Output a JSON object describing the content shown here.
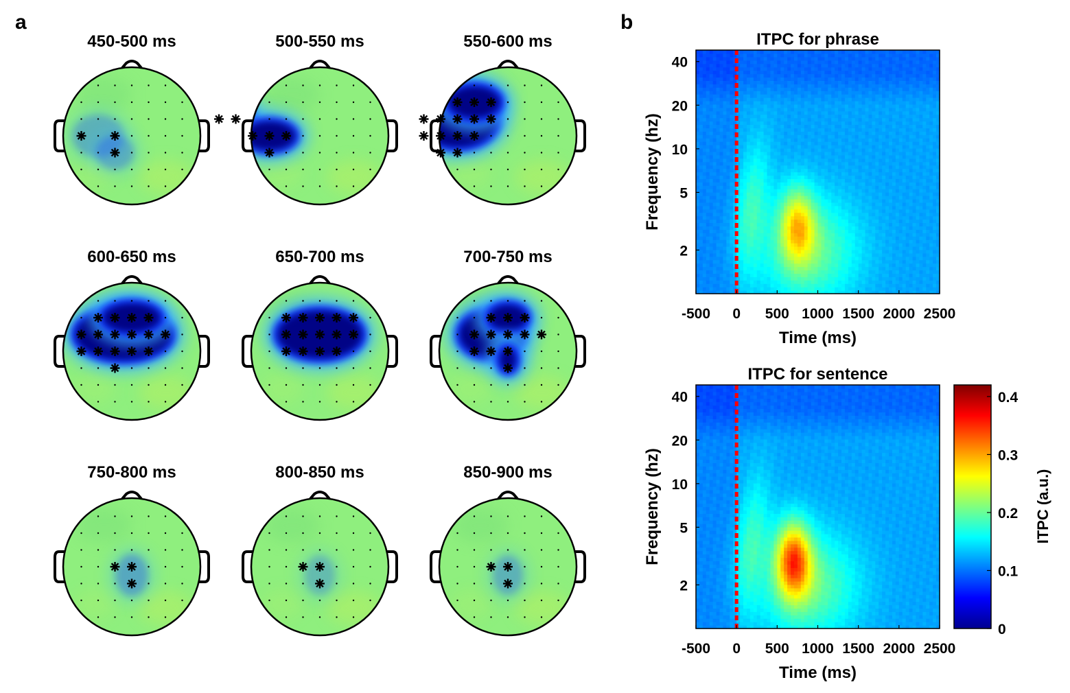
{
  "panel_a": {
    "label": "a",
    "windows": [
      {
        "title": "450-500 ms",
        "sig": [
          [
            -3,
            0
          ],
          [
            -1,
            0
          ],
          [
            -1,
            1
          ]
        ],
        "blob": [
          [
            -2,
            0,
            32,
            26
          ],
          [
            -1,
            1,
            22,
            20
          ]
        ],
        "depth": 0.3
      },
      {
        "title": "500-550 ms",
        "sig": [
          [
            -6,
            -1
          ],
          [
            -5,
            -1
          ],
          [
            -4,
            0
          ],
          [
            -3,
            0
          ],
          [
            -2,
            0
          ],
          [
            -3,
            1
          ]
        ],
        "blob": [
          [
            -5,
            -1,
            26,
            22
          ],
          [
            -3,
            0,
            40,
            24
          ]
        ],
        "depth": 0.95
      },
      {
        "title": "550-600 ms",
        "sig": [
          [
            -3,
            -2
          ],
          [
            -2,
            -2
          ],
          [
            -1,
            -2
          ],
          [
            -5,
            -1
          ],
          [
            -4,
            -1
          ],
          [
            -3,
            -1
          ],
          [
            -2,
            -1
          ],
          [
            -1,
            -1
          ],
          [
            -5,
            0
          ],
          [
            -4,
            0
          ],
          [
            -3,
            0
          ],
          [
            -2,
            0
          ],
          [
            -4,
            1
          ],
          [
            -3,
            1
          ]
        ],
        "blob": [
          [
            -3,
            -1,
            60,
            44
          ],
          [
            -2,
            -2,
            40,
            26
          ]
        ],
        "depth": 1.0
      },
      {
        "title": "600-650 ms",
        "sig": [
          [
            -2,
            -2
          ],
          [
            -1,
            -2
          ],
          [
            0,
            -2
          ],
          [
            1,
            -2
          ],
          [
            -3,
            -1
          ],
          [
            -2,
            -1
          ],
          [
            -1,
            -1
          ],
          [
            0,
            -1
          ],
          [
            1,
            -1
          ],
          [
            2,
            -1
          ],
          [
            -3,
            0
          ],
          [
            -2,
            0
          ],
          [
            -1,
            0
          ],
          [
            0,
            0
          ],
          [
            1,
            0
          ],
          [
            -1,
            1
          ]
        ],
        "blob": [
          [
            -0.5,
            -1,
            72,
            40
          ],
          [
            0,
            -2,
            44,
            24
          ]
        ],
        "depth": 1.0
      },
      {
        "title": "650-700 ms",
        "sig": [
          [
            -2,
            -2
          ],
          [
            -1,
            -2
          ],
          [
            0,
            -2
          ],
          [
            1,
            -2
          ],
          [
            2,
            -2
          ],
          [
            -2,
            -1
          ],
          [
            -1,
            -1
          ],
          [
            0,
            -1
          ],
          [
            1,
            -1
          ],
          [
            2,
            -1
          ],
          [
            -2,
            0
          ],
          [
            -1,
            0
          ],
          [
            0,
            0
          ],
          [
            1,
            0
          ]
        ],
        "blob": [
          [
            0,
            -1,
            64,
            38
          ]
        ],
        "depth": 1.0
      },
      {
        "title": "700-750 ms",
        "sig": [
          [
            -1,
            -2
          ],
          [
            0,
            -2
          ],
          [
            1,
            -2
          ],
          [
            -2,
            -1
          ],
          [
            -1,
            -1
          ],
          [
            0,
            -1
          ],
          [
            1,
            -1
          ],
          [
            2,
            -1
          ],
          [
            -2,
            0
          ],
          [
            -1,
            0
          ],
          [
            0,
            0
          ],
          [
            0,
            1
          ]
        ],
        "blob": [
          [
            -1,
            -1,
            48,
            36
          ],
          [
            0,
            -2,
            30,
            22
          ],
          [
            0,
            0.5,
            14,
            20
          ]
        ],
        "depth": 1.0
      },
      {
        "title": "750-800 ms",
        "sig": [
          [
            -1,
            0
          ],
          [
            0,
            0
          ],
          [
            0,
            1
          ]
        ],
        "blob": [
          [
            0,
            0.5,
            18,
            26
          ]
        ],
        "depth": 0.35
      },
      {
        "title": "800-850 ms",
        "sig": [
          [
            -1,
            0
          ],
          [
            0,
            0
          ],
          [
            0,
            1
          ]
        ],
        "blob": [
          [
            0,
            0.5,
            16,
            24
          ]
        ],
        "depth": 0.25
      },
      {
        "title": "850-900 ms",
        "sig": [
          [
            -1,
            0
          ],
          [
            0,
            0
          ],
          [
            0,
            1
          ]
        ],
        "blob": [
          [
            0,
            0.5,
            16,
            24
          ]
        ],
        "depth": 0.3
      }
    ]
  },
  "panel_b": {
    "label": "b",
    "colorbar": {
      "label": "ITPC (a.u.)",
      "range": [
        0,
        0.42
      ],
      "ticks": [
        "0",
        "0.1",
        "0.2",
        "0.3",
        "0.4"
      ],
      "tick_values": [
        0,
        0.1,
        0.2,
        0.3,
        0.4
      ]
    }
  },
  "chart_data": [
    {
      "type": "heatmap",
      "title": "ITPC for phrase",
      "xlabel": "Time (ms)",
      "ylabel": "Frequency (hz)",
      "x_ticks": [
        "-500",
        "0",
        "500",
        "1000",
        "1500",
        "2000",
        "2500"
      ],
      "x_tick_values": [
        -500,
        0,
        500,
        1000,
        1500,
        2000,
        2500
      ],
      "xlim": [
        -500,
        2500
      ],
      "y_ticks": [
        "2",
        "5",
        "10",
        "20",
        "40"
      ],
      "y_tick_values": [
        2,
        5,
        10,
        20,
        40
      ],
      "ylim": [
        1,
        48
      ],
      "y_scale": "log",
      "stimulus_onset_ms": 0,
      "peak": {
        "time_ms": 750,
        "freq_hz": 3,
        "value": 0.27
      },
      "baseline_value": 0.12,
      "onset_ridge_value": 0.16
    },
    {
      "type": "heatmap",
      "title": "ITPC for sentence",
      "xlabel": "Time (ms)",
      "ylabel": "Frequency (hz)",
      "x_ticks": [
        "-500",
        "0",
        "500",
        "1000",
        "1500",
        "2000",
        "2500"
      ],
      "x_tick_values": [
        -500,
        0,
        500,
        1000,
        1500,
        2000,
        2500
      ],
      "xlim": [
        -500,
        2500
      ],
      "y_ticks": [
        "2",
        "5",
        "10",
        "20",
        "40"
      ],
      "y_tick_values": [
        2,
        5,
        10,
        20,
        40
      ],
      "ylim": [
        1,
        48
      ],
      "y_scale": "log",
      "stimulus_onset_ms": 0,
      "peak": {
        "time_ms": 700,
        "freq_hz": 3,
        "value": 0.33
      },
      "baseline_value": 0.12,
      "onset_ridge_value": 0.16
    }
  ]
}
